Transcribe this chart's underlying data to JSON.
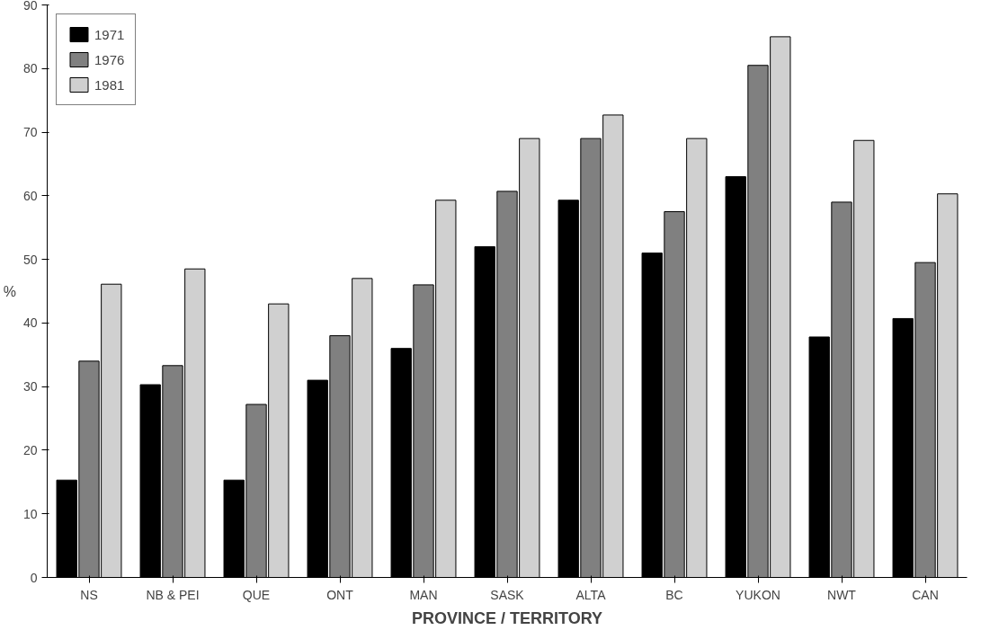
{
  "chart_data": {
    "type": "bar",
    "xlabel": "PROVINCE / TERRITORY",
    "ylabel": "%",
    "categories": [
      "NS",
      "NB & PEI",
      "QUE",
      "ONT",
      "MAN",
      "SASK",
      "ALTA",
      "BC",
      "YUKON",
      "NWT",
      "CAN"
    ],
    "series": [
      {
        "name": "1971",
        "color": "#000000",
        "values": [
          15.3,
          30.3,
          15.3,
          31,
          36,
          52,
          59.3,
          51,
          63,
          37.8,
          40.7
        ]
      },
      {
        "name": "1976",
        "color": "#808080",
        "values": [
          34,
          33.3,
          27.2,
          38,
          46,
          60.7,
          69,
          57.5,
          80.5,
          59,
          49.5
        ]
      },
      {
        "name": "1981",
        "color": "#d0d0d0",
        "values": [
          46.1,
          48.5,
          43,
          47,
          59.3,
          69,
          72.7,
          69,
          85,
          68.7,
          60.3
        ]
      }
    ],
    "ylim": [
      0,
      90
    ],
    "yticks": [
      0,
      10,
      20,
      30,
      40,
      50,
      60,
      70,
      80,
      90
    ],
    "grid": false,
    "legend": "top left"
  }
}
